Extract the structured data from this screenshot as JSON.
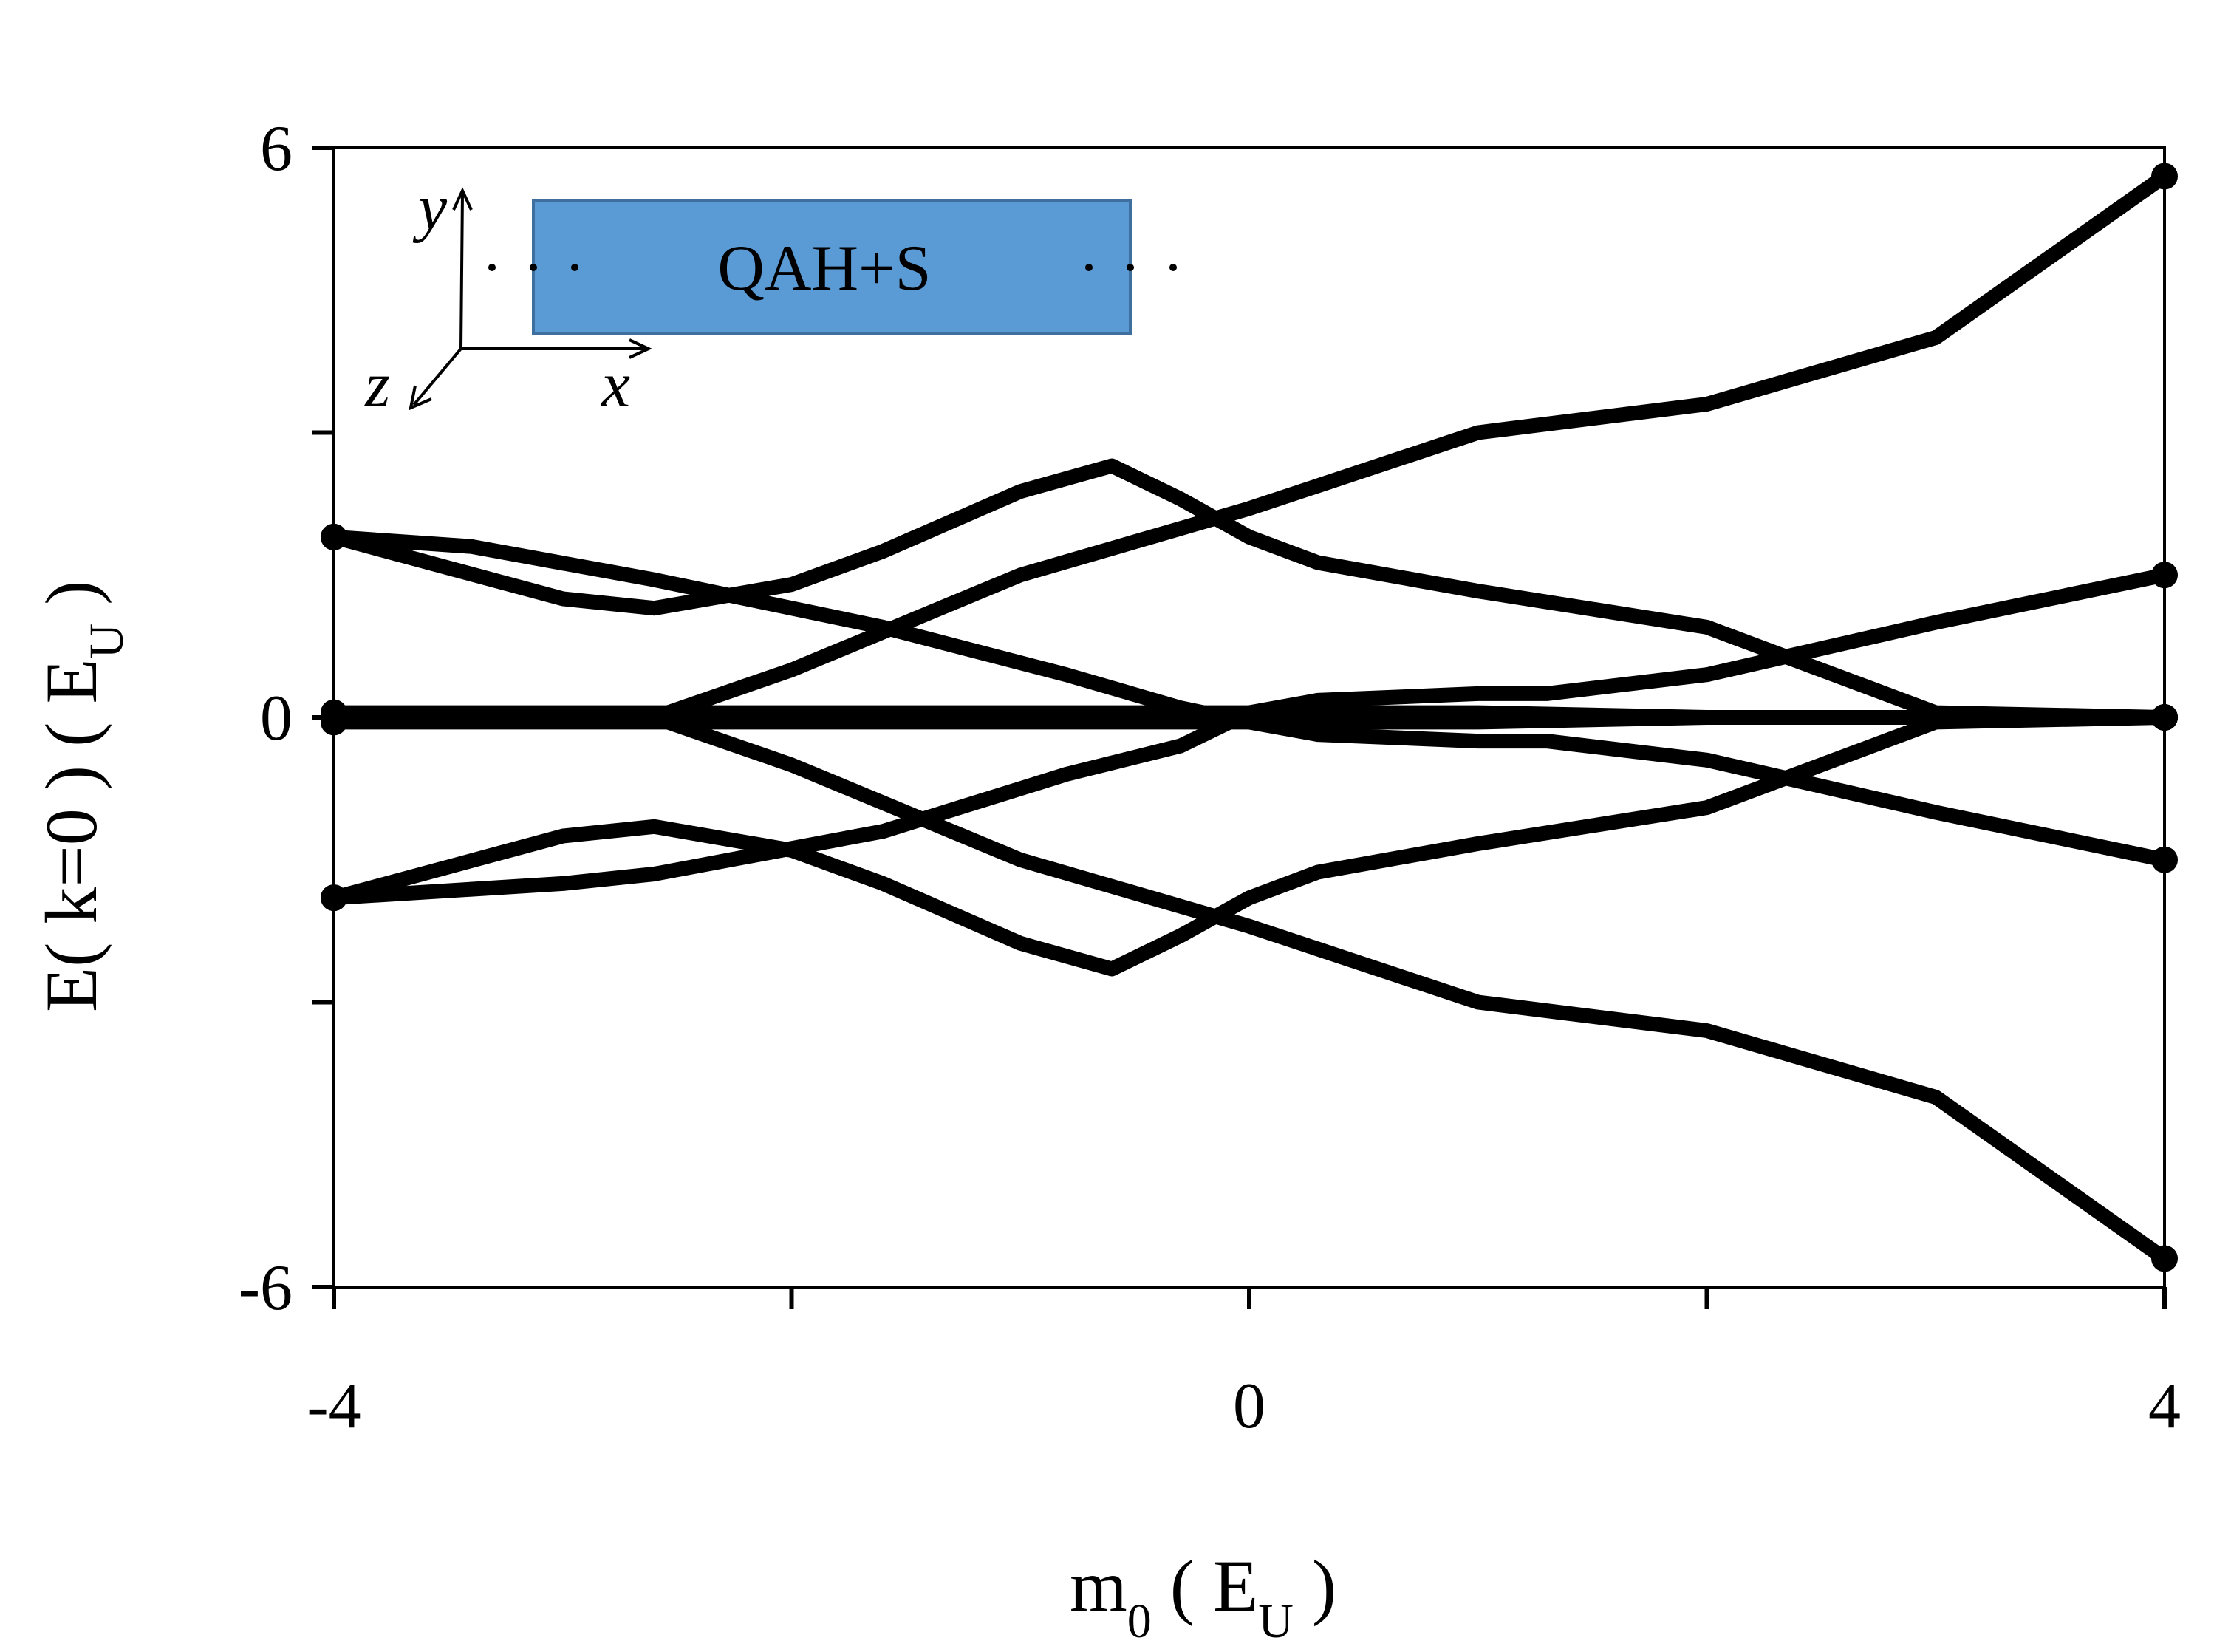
{
  "chart_data": {
    "type": "line",
    "xlabel": {
      "main": "m",
      "sub": "0",
      "unit_main": "E",
      "unit_sub": "U"
    },
    "ylabel": {
      "main": "E( k=0 ) ( E",
      "sub": "U",
      "end": " )"
    },
    "xlim": [
      -4,
      4
    ],
    "ylim": [
      -6,
      6
    ],
    "x_ticks": [
      -4,
      -2,
      0,
      2,
      4
    ],
    "x_tick_labels": [
      "-4",
      "",
      "0",
      "",
      "4"
    ],
    "y_ticks": [
      -6,
      -3,
      0,
      3,
      6
    ],
    "y_tick_labels": [
      "-6",
      "",
      "0",
      "",
      "6"
    ],
    "grid": false,
    "line_color": "#000000",
    "inset": {
      "label": "QAH+S",
      "box_color": "#5b9bd5",
      "axis_x": "x",
      "axis_y": "y",
      "axis_z": "z"
    },
    "series": [
      {
        "x": [
          -4,
          -3.4,
          -2.6,
          -1.6,
          -0.8,
          -0.3,
          0.0,
          0.3,
          1.0,
          1.3,
          2.0,
          3.0,
          4.0
        ],
        "y": [
          1.9,
          1.8,
          1.45,
          0.95,
          0.45,
          0.1,
          -0.05,
          -0.18,
          -0.25,
          -0.25,
          -0.45,
          -1.0,
          -1.5
        ]
      },
      {
        "x": [
          -4,
          -3.0,
          -2.6,
          -1.6,
          -0.8,
          -0.3,
          0.0,
          0.3,
          1.0,
          1.3,
          2.0,
          3.0,
          4.0
        ],
        "y": [
          -1.9,
          -1.75,
          -1.65,
          -1.2,
          -0.6,
          -0.3,
          0.05,
          0.18,
          0.25,
          0.25,
          0.45,
          1.0,
          1.5
        ]
      },
      {
        "x": [
          -4,
          -3.0,
          -2.6,
          -2.0,
          -1.6,
          -1.0,
          -0.6,
          -0.3,
          0.0,
          0.3,
          1.0,
          2.0,
          3.0,
          4.0
        ],
        "y": [
          1.9,
          1.25,
          1.15,
          1.4,
          1.75,
          2.38,
          2.65,
          2.3,
          1.9,
          1.63,
          1.33,
          0.95,
          0.05,
          0.0
        ]
      },
      {
        "x": [
          -4,
          -3.0,
          -2.6,
          -2.0,
          -1.6,
          -1.0,
          -0.6,
          -0.3,
          0.0,
          0.3,
          1.0,
          2.0,
          3.0,
          4.0
        ],
        "y": [
          -1.9,
          -1.25,
          -1.15,
          -1.4,
          -1.75,
          -2.38,
          -2.65,
          -2.3,
          -1.9,
          -1.63,
          -1.33,
          -0.95,
          -0.05,
          0.0
        ]
      },
      {
        "x": [
          -4,
          -2.6,
          -2.0,
          -1.0,
          0.0,
          1.0,
          2.0,
          3.0,
          4.0
        ],
        "y": [
          0.05,
          0.05,
          0.05,
          0.05,
          0.05,
          0.05,
          0.0,
          0.0,
          0.0
        ]
      },
      {
        "x": [
          -4,
          -2.6,
          -2.0,
          -1.0,
          0.0,
          1.0,
          2.0,
          3.0,
          4.0
        ],
        "y": [
          -0.05,
          -0.05,
          -0.05,
          -0.05,
          -0.05,
          -0.05,
          0.0,
          0.0,
          0.0
        ]
      },
      {
        "x": [
          -4,
          -2.6,
          -2.0,
          -1.0,
          0.0,
          1.0,
          2.0,
          3.0,
          4.0
        ],
        "y": [
          0.0,
          0.0,
          0.5,
          1.5,
          2.2,
          3.0,
          3.3,
          4.0,
          5.7
        ]
      },
      {
        "x": [
          -4,
          -2.6,
          -2.0,
          -1.0,
          0.0,
          1.0,
          2.0,
          3.0,
          4.0
        ],
        "y": [
          0.0,
          0.0,
          -0.5,
          -1.5,
          -2.2,
          -3.0,
          -3.3,
          -4.0,
          -5.7
        ]
      }
    ]
  }
}
